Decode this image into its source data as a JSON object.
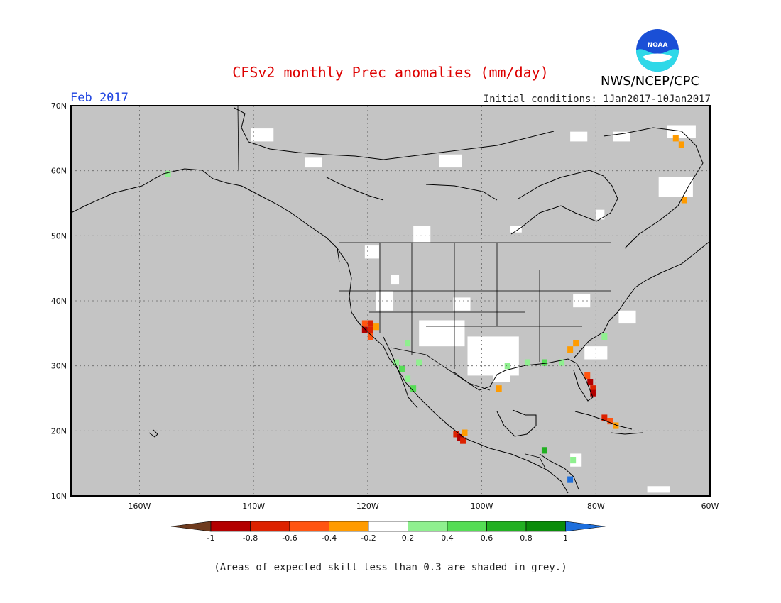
{
  "title": "CFSv2 monthly Prec anomalies (mm/day)",
  "month": "Feb 2017",
  "initial_conditions": "Initial conditions: 1Jan2017-10Jan2017",
  "agency": "NWS/NCEP/CPC",
  "logo_text": "NOAA",
  "footnote": "(Areas of expected skill less than 0.3 are shaded in grey.)",
  "map": {
    "lon_range": [
      -172,
      -60
    ],
    "lat_range": [
      10,
      70
    ],
    "lat_labels": [
      "70N",
      "60N",
      "50N",
      "40N",
      "30N",
      "20N",
      "10N"
    ],
    "lon_labels": [
      "160W",
      "140W",
      "120W",
      "100W",
      "80W",
      "60W"
    ],
    "background_color": "#c4c4c4"
  },
  "colorbar": {
    "labels": [
      "-1",
      "-0.8",
      "-0.6",
      "-0.4",
      "-0.2",
      "0.2",
      "0.4",
      "0.6",
      "0.8",
      "1"
    ],
    "colors": [
      "#6e3b1e",
      "#b30000",
      "#dd2200",
      "#ff5511",
      "#ff9b00",
      "#ffffff",
      "#8ff08f",
      "#55dd55",
      "#22b022",
      "#0a8c0a",
      "#1e6fdc"
    ]
  },
  "cells": [
    {
      "lon": -120.5,
      "lat": 36.5,
      "c": "#ff5511"
    },
    {
      "lon": -119.5,
      "lat": 36.5,
      "c": "#dd2200"
    },
    {
      "lon": -120.5,
      "lat": 35.5,
      "c": "#b30000"
    },
    {
      "lon": -119.5,
      "lat": 35.5,
      "c": "#dd2200"
    },
    {
      "lon": -119.5,
      "lat": 34.5,
      "c": "#ff5511"
    },
    {
      "lon": -118.5,
      "lat": 36.0,
      "c": "#ff9b00"
    },
    {
      "lon": -81.5,
      "lat": 28.5,
      "c": "#ff5511"
    },
    {
      "lon": -81.0,
      "lat": 27.5,
      "c": "#b30000"
    },
    {
      "lon": -80.5,
      "lat": 26.5,
      "c": "#dd2200"
    },
    {
      "lon": -80.5,
      "lat": 25.8,
      "c": "#b30000"
    },
    {
      "lon": -104.5,
      "lat": 19.5,
      "c": "#dd2200"
    },
    {
      "lon": -103.8,
      "lat": 19.0,
      "c": "#b30000"
    },
    {
      "lon": -103.3,
      "lat": 18.5,
      "c": "#dd2200"
    },
    {
      "lon": -103.0,
      "lat": 19.7,
      "c": "#ff9b00"
    },
    {
      "lon": -78.5,
      "lat": 22.0,
      "c": "#dd2200"
    },
    {
      "lon": -77.5,
      "lat": 21.5,
      "c": "#ff5511"
    },
    {
      "lon": -76.5,
      "lat": 20.8,
      "c": "#ff9b00"
    },
    {
      "lon": -84.5,
      "lat": 32.5,
      "c": "#ff9b00"
    },
    {
      "lon": -83.5,
      "lat": 33.5,
      "c": "#ff9b00"
    },
    {
      "lon": -66.0,
      "lat": 65.0,
      "c": "#ff9b00"
    },
    {
      "lon": -65.0,
      "lat": 64.0,
      "c": "#ff9b00"
    },
    {
      "lon": -64.5,
      "lat": 55.5,
      "c": "#ff9b00"
    },
    {
      "lon": -97.0,
      "lat": 26.5,
      "c": "#ff9b00"
    },
    {
      "lon": -115.0,
      "lat": 30.5,
      "c": "#8ff08f"
    },
    {
      "lon": -114.0,
      "lat": 29.5,
      "c": "#55dd55"
    },
    {
      "lon": -113.0,
      "lat": 28.0,
      "c": "#8ff08f"
    },
    {
      "lon": -112.0,
      "lat": 26.5,
      "c": "#55dd55"
    },
    {
      "lon": -111.0,
      "lat": 30.5,
      "c": "#8ff08f"
    },
    {
      "lon": -113.0,
      "lat": 33.5,
      "c": "#8ff08f"
    },
    {
      "lon": -95.5,
      "lat": 30.0,
      "c": "#8ff08f"
    },
    {
      "lon": -92.0,
      "lat": 30.5,
      "c": "#8ff08f"
    },
    {
      "lon": -89.0,
      "lat": 30.5,
      "c": "#55dd55"
    },
    {
      "lon": -86.0,
      "lat": 30.5,
      "c": "#8ff08f"
    },
    {
      "lon": -78.5,
      "lat": 34.5,
      "c": "#8ff08f"
    },
    {
      "lon": -155.0,
      "lat": 59.5,
      "c": "#8ff08f"
    },
    {
      "lon": -89.0,
      "lat": 17.0,
      "c": "#22b022"
    },
    {
      "lon": -84.0,
      "lat": 15.5,
      "c": "#8ff08f"
    },
    {
      "lon": -84.5,
      "lat": 12.5,
      "c": "#1e6fdc"
    }
  ],
  "white_cells": [
    {
      "lon": -140.5,
      "lat": 64.5,
      "w": 4,
      "h": 2
    },
    {
      "lon": -131.0,
      "lat": 60.5,
      "w": 3,
      "h": 1.5
    },
    {
      "lon": -107.5,
      "lat": 60.5,
      "w": 4,
      "h": 2
    },
    {
      "lon": -112.0,
      "lat": 49.0,
      "w": 3,
      "h": 2.5
    },
    {
      "lon": -120.5,
      "lat": 46.5,
      "w": 2.5,
      "h": 2
    },
    {
      "lon": -116.0,
      "lat": 42.5,
      "w": 1.5,
      "h": 1.5
    },
    {
      "lon": -118.5,
      "lat": 38.5,
      "w": 3,
      "h": 3
    },
    {
      "lon": -111.0,
      "lat": 33.0,
      "w": 8,
      "h": 4
    },
    {
      "lon": -102.5,
      "lat": 28.5,
      "w": 9,
      "h": 6
    },
    {
      "lon": -105.0,
      "lat": 38.5,
      "w": 3,
      "h": 2
    },
    {
      "lon": -98.0,
      "lat": 27.5,
      "w": 3,
      "h": 6
    },
    {
      "lon": -82.0,
      "lat": 31.0,
      "w": 4,
      "h": 2
    },
    {
      "lon": -76.0,
      "lat": 36.5,
      "w": 3,
      "h": 2
    },
    {
      "lon": -84.0,
      "lat": 39.0,
      "w": 3,
      "h": 2
    },
    {
      "lon": -77.0,
      "lat": 64.5,
      "w": 3,
      "h": 1.5
    },
    {
      "lon": -67.5,
      "lat": 65.0,
      "w": 5,
      "h": 2
    },
    {
      "lon": -69.0,
      "lat": 56.0,
      "w": 6,
      "h": 3
    },
    {
      "lon": -80.0,
      "lat": 52.5,
      "w": 1.5,
      "h": 1.5
    },
    {
      "lon": -95.0,
      "lat": 50.5,
      "w": 2,
      "h": 1
    },
    {
      "lon": -84.5,
      "lat": 64.5,
      "w": 3,
      "h": 1.5
    },
    {
      "lon": -84.5,
      "lat": 14.5,
      "w": 2,
      "h": 2
    },
    {
      "lon": -71.0,
      "lat": 10.5,
      "w": 4,
      "h": 1
    }
  ]
}
